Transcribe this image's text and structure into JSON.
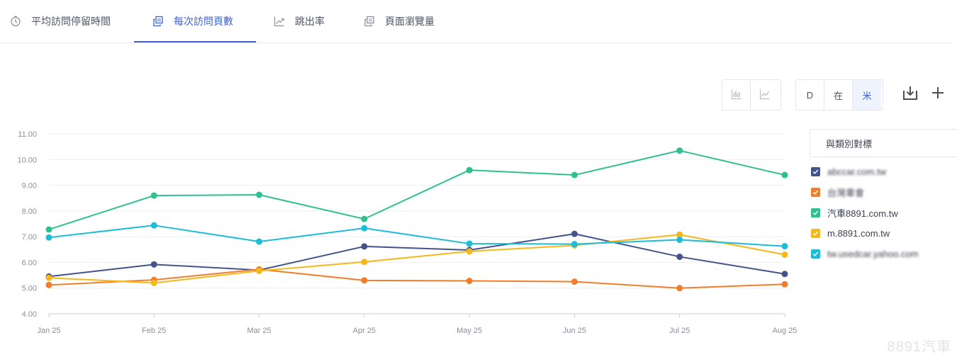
{
  "tabs": [
    {
      "label": "平均訪問停留時間",
      "icon": "clock-icon",
      "active": false
    },
    {
      "label": "每次訪問頁數",
      "icon": "pages-icon",
      "active": true
    },
    {
      "label": "跳出率",
      "icon": "trend-icon",
      "active": false
    },
    {
      "label": "頁面瀏覽量",
      "icon": "pages-icon",
      "active": false
    }
  ],
  "toolbar": {
    "chart_type_icons": [
      "bar-chart-icon",
      "line-chart-icon"
    ],
    "granularity": [
      {
        "label": "D",
        "selected": false
      },
      {
        "label": "在",
        "selected": false
      },
      {
        "label": "米",
        "selected": true
      }
    ],
    "download_icon": "download-icon",
    "add_icon": "plus-icon"
  },
  "legend": {
    "header": "與類別對標",
    "items": [
      {
        "label": "abccar.com.tw",
        "color": "#44538a",
        "blurred": true
      },
      {
        "label": "台灣車會",
        "color": "#f07f2d",
        "blurred": true
      },
      {
        "label": "汽車8891.com.tw",
        "color": "#2ec08f",
        "blurred": false
      },
      {
        "label": "m.8891.com.tw",
        "color": "#f5b71c",
        "blurred": false
      },
      {
        "label": "tw.usedcar.yahoo.com",
        "color": "#1dbcd8",
        "blurred": true
      }
    ]
  },
  "chart_data": {
    "type": "line",
    "x": [
      "Jan 25",
      "Feb 25",
      "Mar 25",
      "Apr 25",
      "May 25",
      "Jun 25",
      "Jul 25",
      "Aug 25"
    ],
    "ylim": [
      4,
      11
    ],
    "yticks": [
      "4.00",
      "5.00",
      "6.00",
      "7.00",
      "8.00",
      "9.00",
      "10.00",
      "11.00"
    ],
    "grid": true,
    "legend_position": "right",
    "series": [
      {
        "name": "abccar.com.tw",
        "color": "#44538a",
        "values": [
          5.45,
          5.92,
          5.7,
          6.62,
          6.48,
          7.11,
          6.22,
          5.55
        ]
      },
      {
        "name": "台灣車會",
        "color": "#f07f2d",
        "values": [
          5.12,
          5.32,
          5.73,
          5.3,
          5.28,
          5.25,
          5.0,
          5.15
        ]
      },
      {
        "name": "汽車8891.com.tw",
        "color": "#2ec08f",
        "values": [
          7.28,
          8.6,
          8.63,
          7.69,
          9.59,
          9.4,
          10.35,
          9.4
        ]
      },
      {
        "name": "m.8891.com.tw",
        "color": "#f5b71c",
        "values": [
          5.4,
          5.2,
          5.67,
          6.02,
          6.43,
          6.66,
          7.08,
          6.3
        ]
      },
      {
        "name": "tw.usedcar.yahoo.com",
        "color": "#1dbcd8",
        "values": [
          6.97,
          7.44,
          6.81,
          7.33,
          6.73,
          6.71,
          6.88,
          6.63
        ]
      }
    ]
  },
  "watermark": "8891汽車"
}
